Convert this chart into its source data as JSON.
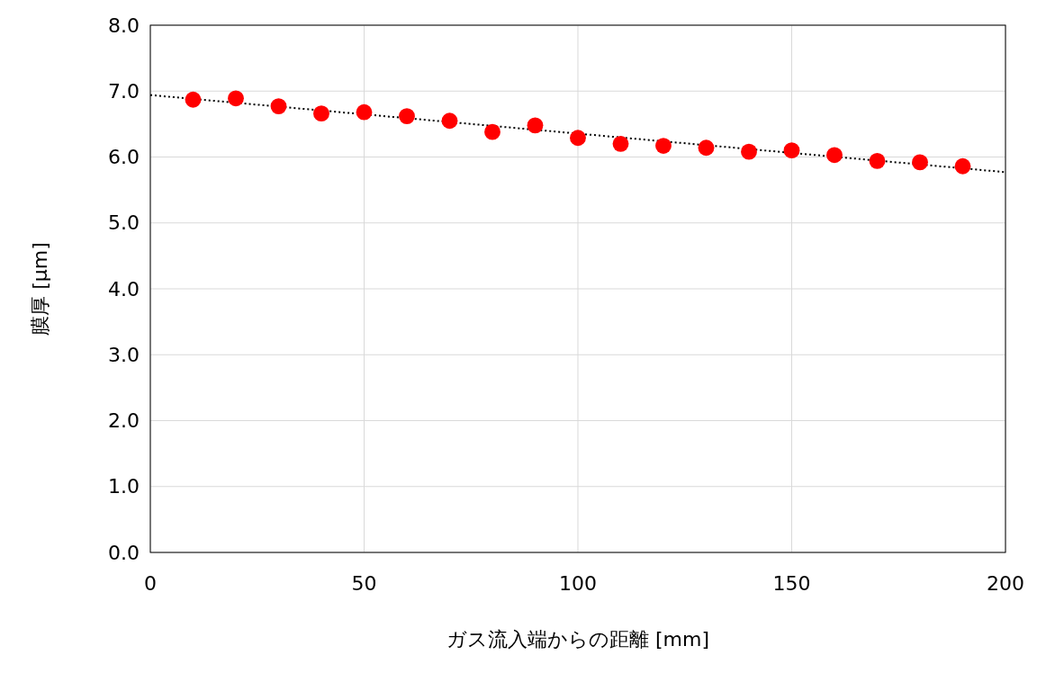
{
  "chart_data": {
    "type": "scatter",
    "xlabel": "ガス流入端からの距離 [mm]",
    "ylabel": "膜厚 [μm]",
    "xlim": [
      0,
      200
    ],
    "xticks": [
      0,
      50,
      100,
      150,
      200
    ],
    "ylim": [
      0,
      8
    ],
    "yticks": [
      {
        "value": 0,
        "label": "0.0"
      },
      {
        "value": 1,
        "label": "1.0"
      },
      {
        "value": 2,
        "label": "2.0"
      },
      {
        "value": 3,
        "label": "3.0"
      },
      {
        "value": 4,
        "label": "4.0"
      },
      {
        "value": 5,
        "label": "5.0"
      },
      {
        "value": 6,
        "label": "6.0"
      },
      {
        "value": 7,
        "label": "7.0"
      },
      {
        "value": 8,
        "label": "8.0"
      }
    ],
    "grid": true,
    "series": [
      {
        "color": "#ff0000",
        "marker": "circle",
        "x": [
          10,
          20,
          30,
          40,
          50,
          60,
          70,
          80,
          90,
          100,
          110,
          120,
          130,
          140,
          150,
          160,
          170,
          180,
          190
        ],
        "values": [
          6.87,
          6.89,
          6.77,
          6.66,
          6.68,
          6.62,
          6.55,
          6.38,
          6.48,
          6.29,
          6.2,
          6.17,
          6.14,
          6.08,
          6.1,
          6.03,
          5.94,
          5.92,
          5.86
        ]
      },
      {
        "type": "line",
        "color": "#000000",
        "line_style": "dotted",
        "marker": "none",
        "x": [
          0,
          200
        ],
        "values": [
          6.94,
          5.77
        ]
      }
    ]
  }
}
